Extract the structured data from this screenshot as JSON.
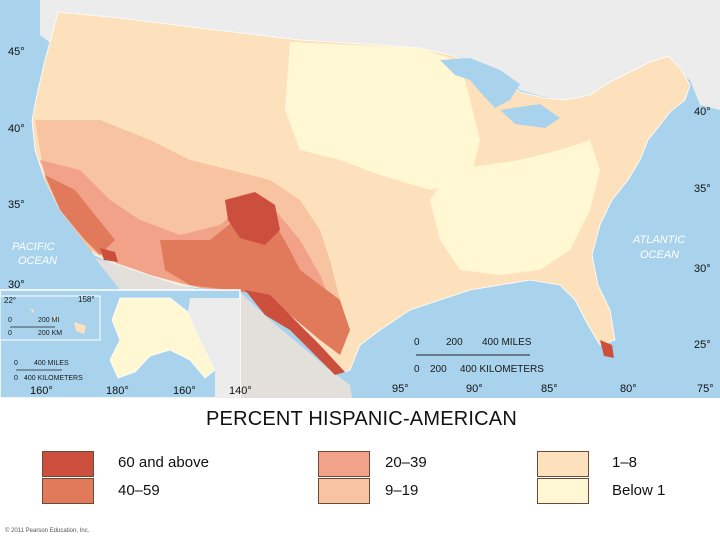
{
  "map": {
    "oceans": {
      "pacific_line1": "PACIFIC",
      "pacific_line2": "OCEAN",
      "atlantic_line1": "ATLANTIC",
      "atlantic_line2": "OCEAN"
    },
    "lat_labels_left": [
      "45°",
      "40°",
      "35°",
      "30°"
    ],
    "lat_labels_right": [
      "40°",
      "35°",
      "30°",
      "25°"
    ],
    "lon_labels": [
      "95°",
      "90°",
      "85°",
      "80°",
      "75°"
    ],
    "inset_lon_labels": [
      "160°",
      "180°",
      "160°",
      "140°"
    ],
    "hawaii_labels": {
      "lat22": "22°",
      "lon158": "158°"
    },
    "scale": {
      "miles_0": "0",
      "miles_200": "200",
      "miles_400": "400 MILES",
      "km_0": "0",
      "km_200": "200",
      "km_400": "400 KILOMETERS"
    },
    "hawaii_scale": {
      "mi_0": "0",
      "mi_200": "200 MI",
      "km_0": "0",
      "km_200": "200 KM"
    },
    "alaska_scale": {
      "mi_0": "0",
      "mi_400": "400 MILES",
      "km_0": "0",
      "km_400": "400 KILOMETERS"
    },
    "colors": {
      "ocean": "#a9d3ec",
      "canada": "#ececec",
      "mexico": "#e3e0dc",
      "border": "#ffffff"
    }
  },
  "legend": {
    "title": "PERCENT HISPANIC-AMERICAN",
    "items": [
      {
        "label": "60 and above",
        "color": "#cc4f3d"
      },
      {
        "label": "40–59",
        "color": "#e07a5a"
      },
      {
        "label": "20–39",
        "color": "#f2a288"
      },
      {
        "label": "9–19",
        "color": "#f8c3a0"
      },
      {
        "label": "1–8",
        "color": "#fde1bd"
      },
      {
        "label": "Below 1",
        "color": "#fff8d3"
      }
    ]
  },
  "credit": "© 2011 Pearson Education, Inc."
}
